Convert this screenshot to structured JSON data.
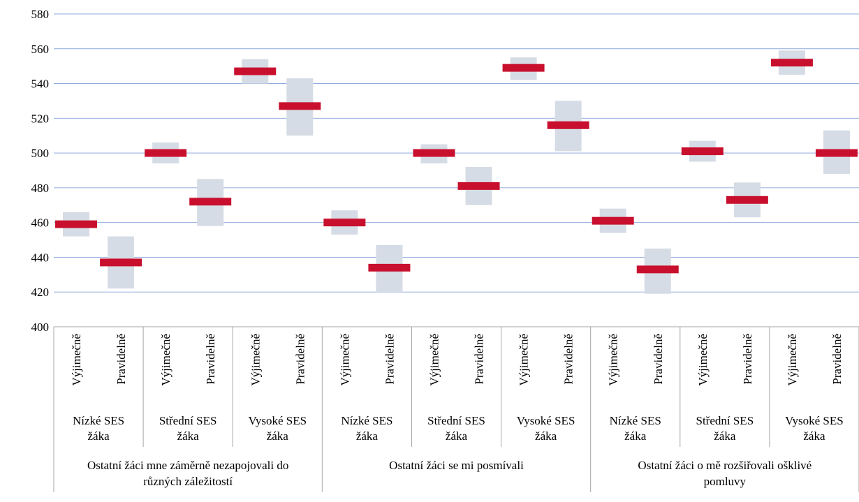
{
  "chart_data": {
    "type": "bar",
    "title": "",
    "ylim": [
      400,
      580
    ],
    "y_ticks": [
      400,
      420,
      440,
      460,
      480,
      500,
      520,
      540,
      560,
      580
    ],
    "grid": true,
    "groups": [
      {
        "label": "Ostatní žáci mne záměrně nezapojovali do různých záležitostí",
        "subgroups": [
          {
            "label": "Nízké SES žáka",
            "categories": [
              {
                "label": "Výjimečně",
                "value": 459,
                "low": 452,
                "high": 466
              },
              {
                "label": "Pravidelně",
                "value": 437,
                "low": 422,
                "high": 452
              }
            ]
          },
          {
            "label": "Střední SES žáka",
            "categories": [
              {
                "label": "Výjimečně",
                "value": 500,
                "low": 494,
                "high": 506
              },
              {
                "label": "Pravidelně",
                "value": 472,
                "low": 458,
                "high": 485
              }
            ]
          },
          {
            "label": "Vysoké SES žáka",
            "categories": [
              {
                "label": "Výjimečně",
                "value": 547,
                "low": 540,
                "high": 554
              },
              {
                "label": "Pravidelně",
                "value": 527,
                "low": 510,
                "high": 543
              }
            ]
          }
        ]
      },
      {
        "label": "Ostatní žáci se mi posmívali",
        "subgroups": [
          {
            "label": "Nízké SES žáka",
            "categories": [
              {
                "label": "Výjimečně",
                "value": 460,
                "low": 453,
                "high": 467
              },
              {
                "label": "Pravidelně",
                "value": 434,
                "low": 420,
                "high": 447
              }
            ]
          },
          {
            "label": "Střední SES žáka",
            "categories": [
              {
                "label": "Výjimečně",
                "value": 500,
                "low": 494,
                "high": 505
              },
              {
                "label": "Pravidelně",
                "value": 481,
                "low": 470,
                "high": 492
              }
            ]
          },
          {
            "label": "Vysoké SES žáka",
            "categories": [
              {
                "label": "Výjimečně",
                "value": 549,
                "low": 542,
                "high": 555
              },
              {
                "label": "Pravidelně",
                "value": 516,
                "low": 501,
                "high": 530
              }
            ]
          }
        ]
      },
      {
        "label": "Ostatní žáci o mě rozšiřovali ošklivé pomluvy",
        "subgroups": [
          {
            "label": "Nízké SES žáka",
            "categories": [
              {
                "label": "Výjimečně",
                "value": 461,
                "low": 454,
                "high": 468
              },
              {
                "label": "Pravidelně",
                "value": 433,
                "low": 419,
                "high": 445
              }
            ]
          },
          {
            "label": "Střední SES žáka",
            "categories": [
              {
                "label": "Výjimečně",
                "value": 501,
                "low": 495,
                "high": 507
              },
              {
                "label": "Pravidelně",
                "value": 473,
                "low": 463,
                "high": 483
              }
            ]
          },
          {
            "label": "Vysoké SES žáka",
            "categories": [
              {
                "label": "Výjimečně",
                "value": 552,
                "low": 545,
                "high": 559
              },
              {
                "label": "Pravidelně",
                "value": 500,
                "low": 488,
                "high": 513
              }
            ]
          }
        ]
      }
    ],
    "colors": {
      "estimate": "#c8102e",
      "interval": "#d6dce5",
      "grid": "#8faadc",
      "axis": "#a6a6a6"
    }
  }
}
